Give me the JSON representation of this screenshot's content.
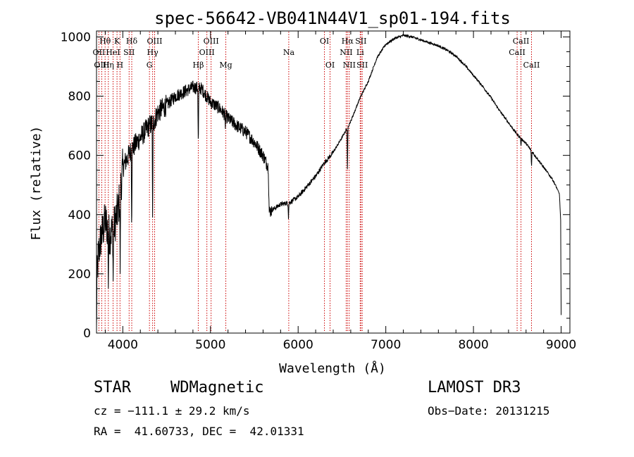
{
  "chart_data": {
    "type": "line",
    "title": "spec-56642-VB041N44V1_sp01-194.fits",
    "xlabel": "Wavelength (Å)",
    "ylabel": "Flux (relative)",
    "xlim": [
      3700,
      9100
    ],
    "ylim": [
      0,
      1020
    ],
    "x_ticks": [
      4000,
      5000,
      6000,
      7000,
      8000,
      9000
    ],
    "x_tick_labels": [
      "4000",
      "5000",
      "6000",
      "7000",
      "8000",
      "9000"
    ],
    "y_ticks": [
      0,
      200,
      400,
      600,
      800,
      1000
    ],
    "y_tick_labels": [
      "0",
      "200",
      "400",
      "600",
      "800",
      "1000"
    ],
    "x_minor_step": 200,
    "y_minor_step": 50,
    "series": [
      {
        "name": "flux",
        "anchors": [
          [
            3700,
            0
          ],
          [
            3705,
            180
          ],
          [
            3720,
            260
          ],
          [
            3750,
            320
          ],
          [
            3800,
            380
          ],
          [
            3850,
            330
          ],
          [
            3900,
            360
          ],
          [
            3950,
            420
          ],
          [
            4000,
            560
          ],
          [
            4050,
            590
          ],
          [
            4100,
            620
          ],
          [
            4150,
            640
          ],
          [
            4200,
            660
          ],
          [
            4250,
            680
          ],
          [
            4300,
            700
          ],
          [
            4350,
            710
          ],
          [
            4400,
            745
          ],
          [
            4500,
            770
          ],
          [
            4600,
            800
          ],
          [
            4700,
            815
          ],
          [
            4800,
            830
          ],
          [
            4900,
            825
          ],
          [
            5000,
            780
          ],
          [
            5100,
            760
          ],
          [
            5200,
            725
          ],
          [
            5300,
            700
          ],
          [
            5400,
            680
          ],
          [
            5500,
            645
          ],
          [
            5600,
            600
          ],
          [
            5660,
            560
          ],
          [
            5670,
            410
          ],
          [
            5700,
            415
          ],
          [
            5800,
            435
          ],
          [
            5900,
            440
          ],
          [
            6000,
            460
          ],
          [
            6100,
            495
          ],
          [
            6200,
            530
          ],
          [
            6300,
            575
          ],
          [
            6400,
            610
          ],
          [
            6500,
            660
          ],
          [
            6600,
            715
          ],
          [
            6700,
            790
          ],
          [
            6800,
            850
          ],
          [
            6900,
            930
          ],
          [
            7000,
            975
          ],
          [
            7100,
            995
          ],
          [
            7200,
            1005
          ],
          [
            7300,
            1000
          ],
          [
            7400,
            990
          ],
          [
            7500,
            980
          ],
          [
            7600,
            970
          ],
          [
            7700,
            955
          ],
          [
            7800,
            935
          ],
          [
            7900,
            905
          ],
          [
            8000,
            870
          ],
          [
            8100,
            835
          ],
          [
            8200,
            795
          ],
          [
            8300,
            750
          ],
          [
            8400,
            710
          ],
          [
            8500,
            670
          ],
          [
            8600,
            640
          ],
          [
            8700,
            600
          ],
          [
            8800,
            560
          ],
          [
            8900,
            520
          ],
          [
            8950,
            490
          ],
          [
            8980,
            470
          ],
          [
            8995,
            380
          ],
          [
            9000,
            60
          ]
        ],
        "dips": [
          [
            3835,
            150
          ],
          [
            3890,
            175
          ],
          [
            3970,
            200
          ],
          [
            4101,
            330
          ],
          [
            4340,
            390
          ],
          [
            4861,
            620
          ],
          [
            5170,
            690
          ],
          [
            5890,
            385
          ],
          [
            6563,
            540
          ],
          [
            8542,
            630
          ],
          [
            8662,
            560
          ]
        ]
      }
    ],
    "lines": [
      {
        "label": "Hθ",
        "wave": 3798,
        "row": 1
      },
      {
        "label": "OII",
        "wave": 3727,
        "row": 2
      },
      {
        "label": "OIII",
        "wave": 3760,
        "row": 3
      },
      {
        "label": "K",
        "wave": 3934,
        "row": 1
      },
      {
        "label": "HeI",
        "wave": 3889,
        "row": 2
      },
      {
        "label": "Hη",
        "wave": 3835,
        "row": 3
      },
      {
        "label": "Hδ",
        "wave": 4102,
        "row": 1
      },
      {
        "label": "SII",
        "wave": 4072,
        "row": 2
      },
      {
        "label": "H",
        "wave": 3968,
        "row": 3
      },
      {
        "label": "OIII",
        "wave": 4363,
        "row": 1
      },
      {
        "label": "Hγ",
        "wave": 4340,
        "row": 2
      },
      {
        "label": "G",
        "wave": 4304,
        "row": 3
      },
      {
        "label": "OIII",
        "wave": 5007,
        "row": 1
      },
      {
        "label": "OIII",
        "wave": 4959,
        "row": 2
      },
      {
        "label": "Hβ",
        "wave": 4861,
        "row": 3
      },
      {
        "label": "Mg",
        "wave": 5175,
        "row": 3
      },
      {
        "label": "Na",
        "wave": 5893,
        "row": 2
      },
      {
        "label": "OI",
        "wave": 6300,
        "row": 1
      },
      {
        "label": "OI",
        "wave": 6364,
        "row": 3
      },
      {
        "label": "Hα",
        "wave": 6563,
        "row": 1
      },
      {
        "label": "NII",
        "wave": 6548,
        "row": 2
      },
      {
        "label": "NII",
        "wave": 6583,
        "row": 3
      },
      {
        "label": "SII",
        "wave": 6716,
        "row": 1
      },
      {
        "label": "Li",
        "wave": 6708,
        "row": 2
      },
      {
        "label": "SII",
        "wave": 6731,
        "row": 3
      },
      {
        "label": "CaII",
        "wave": 8542,
        "row": 1
      },
      {
        "label": "CaII",
        "wave": 8498,
        "row": 2
      },
      {
        "label": "CaII",
        "wave": 8662,
        "row": 3
      }
    ],
    "line_color": "#cc0000",
    "trace_color": "#000000"
  },
  "info": {
    "class": "STAR",
    "subclass": "WDMagnetic",
    "survey": "LAMOST DR3",
    "cz": "cz = −111.1 ± 29.2 km/s",
    "obs_date": "Obs−Date: 20131215",
    "radec": "RA =  41.60733, DEC =  42.01331"
  }
}
